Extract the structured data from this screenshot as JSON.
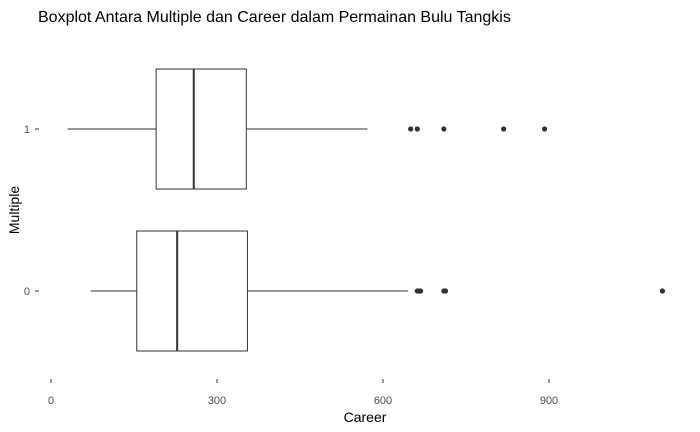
{
  "chart_data": {
    "type": "boxplot",
    "orientation": "horizontal",
    "title": "Boxplot Antara Multiple dan Career dalam Permainan Bulu Tangkis",
    "xlabel": "Career",
    "ylabel": "Multiple",
    "xlim": [
      -10,
      1115
    ],
    "x_ticks": [
      0,
      300,
      600,
      900
    ],
    "x_tick_labels": [
      "0",
      "300",
      "600",
      "900"
    ],
    "categories": [
      "0",
      "1"
    ],
    "grid": false,
    "legend": "none",
    "colors": {
      "box_fill": "#ffffff",
      "box_stroke": "#333333",
      "outlier": "#333333",
      "text": "#000000",
      "tick_text": "#4d4d4d"
    },
    "boxes": [
      {
        "category": "0",
        "whisker_low": 72,
        "q1": 155,
        "median": 228,
        "q3": 355,
        "whisker_high": 645,
        "outliers": [
          662,
          665,
          668,
          710,
          713,
          1105
        ]
      },
      {
        "category": "1",
        "whisker_low": 30,
        "q1": 190,
        "median": 258,
        "q3": 353,
        "whisker_high": 572,
        "outliers": [
          650,
          662,
          710,
          818,
          892
        ]
      }
    ]
  }
}
